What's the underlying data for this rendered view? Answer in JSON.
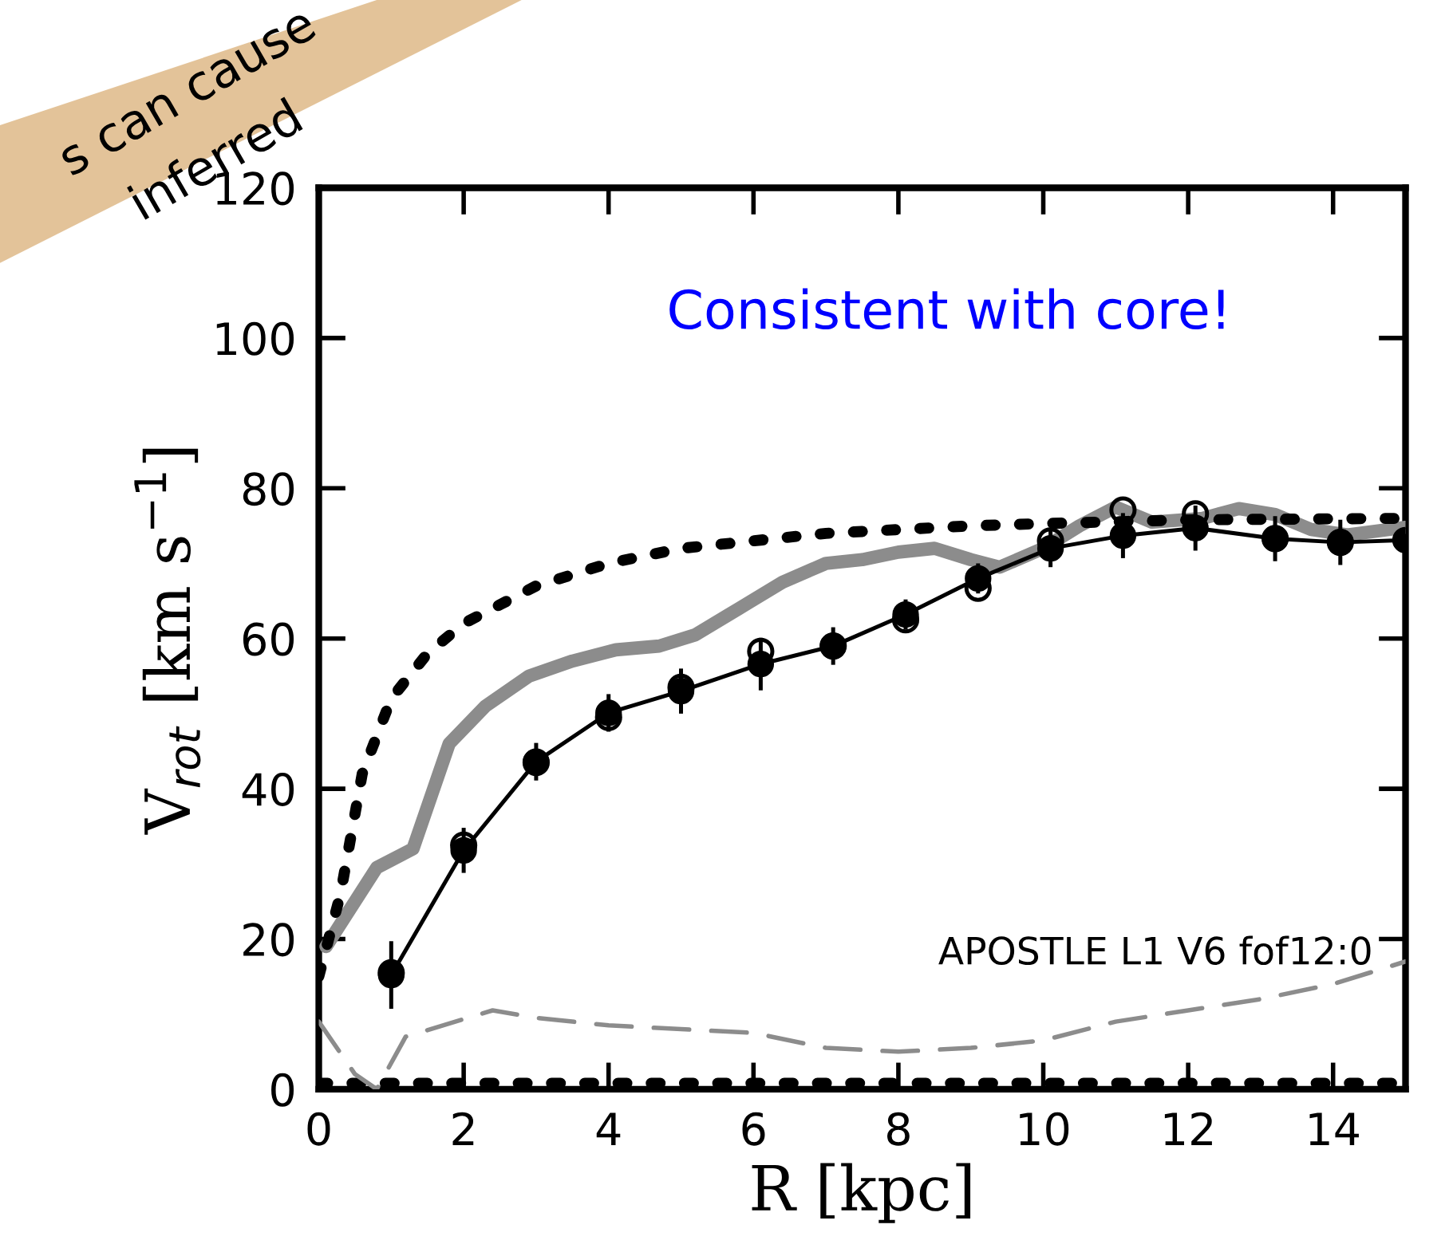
{
  "chart_data": {
    "type": "line",
    "xlabel": "R [kpc]",
    "ylabel": "V$_{rot}$ [km s$^{−1}$]",
    "xlim": [
      0,
      15
    ],
    "ylim": [
      0,
      120
    ],
    "xticks": [
      0,
      2,
      4,
      6,
      8,
      10,
      12,
      14
    ],
    "yticks": [
      0,
      20,
      40,
      60,
      80,
      100,
      120
    ],
    "grid": false,
    "legend": false,
    "annotations": [
      "Consistent with core!",
      "APOSTLE L1 V6 fof12:0",
      "s can cause",
      "inferred"
    ],
    "series": [
      {
        "color": "#8c8c8c",
        "line_style": "solid",
        "marker": "none",
        "x": [
          0.1,
          0.8,
          1.3,
          1.8,
          2.3,
          2.9,
          3.5,
          4.1,
          4.7,
          5.2,
          5.8,
          6.4,
          7.0,
          7.5,
          8.0,
          8.5,
          9.0,
          9.4,
          10.0,
          10.5,
          11.0,
          11.5,
          12.2,
          12.7,
          13.2,
          13.7,
          14.2,
          15.0
        ],
        "values": [
          19,
          29.5,
          32,
          46,
          51,
          55,
          57,
          58.5,
          59,
          60.5,
          64,
          67.5,
          70,
          70.5,
          71.5,
          72,
          70.5,
          69.5,
          72,
          75,
          77.5,
          75.5,
          76,
          77.3,
          76.5,
          74.5,
          73.8,
          74.8
        ]
      },
      {
        "color": "#000000",
        "line_style": "dotted",
        "marker": "none",
        "x": [
          0,
          0.3,
          0.6,
          1,
          1.5,
          2,
          3,
          4,
          5,
          6,
          7,
          8,
          9,
          10,
          12,
          15
        ],
        "values": [
          15,
          26,
          42,
          52,
          58,
          62,
          67,
          70,
          72,
          73,
          74,
          74.5,
          75,
          75.3,
          75.8,
          76
        ]
      },
      {
        "color": "#000000",
        "line_style": "dotted",
        "marker": "none",
        "x": [
          0,
          15
        ],
        "values": [
          0.8,
          0.8
        ]
      },
      {
        "color": "#8c8c8c",
        "line_style": "dashed",
        "marker": "none",
        "x": [
          0,
          0.5,
          0.8,
          1.2,
          2.4,
          3,
          4,
          5,
          6,
          7,
          8,
          9,
          10,
          11,
          12,
          13,
          14,
          15
        ],
        "values": [
          9,
          2,
          0,
          7,
          10.5,
          9.5,
          8.5,
          8,
          7.5,
          5.5,
          5,
          5.5,
          6.5,
          9,
          10.5,
          12,
          14,
          17
        ]
      },
      {
        "type": "scatter",
        "color": "#000000",
        "marker": "circle",
        "x": [
          1.0,
          2.0,
          3.0,
          4.0,
          5.0,
          6.1,
          7.1,
          8.1,
          9.1,
          10.1,
          11.1,
          12.1,
          13.2,
          14.1
        ],
        "values": [
          15.5,
          32.5,
          43.5,
          49.5,
          53.5,
          58.3,
          59,
          62.5,
          66.7,
          73,
          77.1,
          76.6,
          73.3,
          72.8
        ]
      },
      {
        "color": "#000000",
        "line_style": "solid",
        "marker": "circle",
        "x": [
          1.0,
          2.0,
          3.0,
          4.0,
          5.0,
          6.1,
          7.1,
          8.1,
          9.1,
          10.1,
          11.1,
          12.1,
          13.2,
          14.1,
          15.0
        ],
        "values": [
          15.2,
          31.8,
          43.6,
          50.1,
          53,
          56.6,
          59,
          63.2,
          68,
          72,
          73.7,
          74.7,
          73.3,
          72.8,
          73.1
        ],
        "errors": [
          4.5,
          3,
          2.5,
          2.5,
          3,
          3.5,
          2.5,
          2,
          2,
          2.5,
          3,
          3,
          3,
          3,
          null
        ]
      }
    ]
  }
}
